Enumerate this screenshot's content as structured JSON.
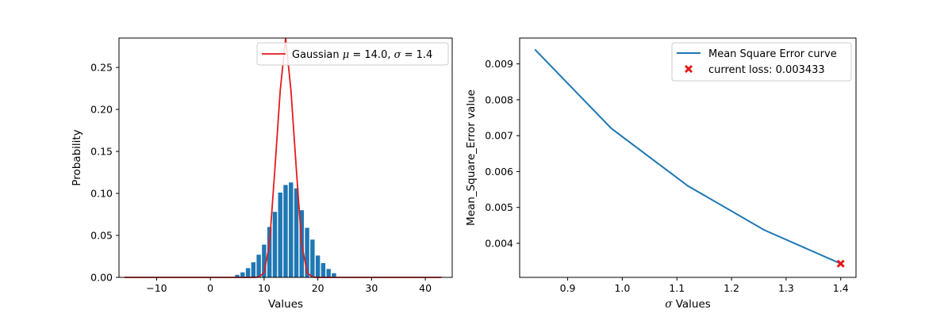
{
  "chart_data": [
    {
      "type": "bar",
      "xlabel": "Values",
      "ylabel": "Probability",
      "xlim": [
        -17,
        45
      ],
      "ylim": [
        0,
        0.285
      ],
      "xticks": [
        -10,
        0,
        10,
        20,
        30,
        40
      ],
      "xtick_labels": [
        "−10",
        "0",
        "10",
        "20",
        "30",
        "40"
      ],
      "yticks": [
        0.0,
        0.05,
        0.1,
        0.15,
        0.2,
        0.25
      ],
      "ytick_labels": [
        "0.00",
        "0.05",
        "0.10",
        "0.15",
        "0.20",
        "0.25"
      ],
      "grid": false,
      "legend_position": "top-right",
      "series": [
        {
          "kind": "bar",
          "color": "#1f77b4",
          "x": [
            5,
            6,
            7,
            8,
            9,
            10,
            11,
            12,
            13,
            14,
            15,
            16,
            17,
            18,
            19,
            20,
            21,
            22,
            23
          ],
          "values": [
            0.003,
            0.006,
            0.011,
            0.018,
            0.027,
            0.039,
            0.06,
            0.078,
            0.101,
            0.11,
            0.113,
            0.106,
            0.08,
            0.059,
            0.045,
            0.026,
            0.017,
            0.01,
            0.005
          ]
        },
        {
          "kind": "line",
          "name_prefix": "Gaussian ",
          "name_mu_symbol": "μ",
          "name_mu_value": " = 14.0, ",
          "name_sigma_symbol": "σ",
          "name_sigma_value": " = 1.4",
          "color": "#e41a1c",
          "x": [
            -16,
            -15,
            -14,
            -13,
            -12,
            -11,
            -10,
            -9,
            -8,
            -7,
            -6,
            -5,
            -4,
            -3,
            -2,
            -1,
            0,
            1,
            2,
            3,
            4,
            5,
            6,
            7,
            8,
            9,
            10,
            11,
            12,
            13,
            14,
            15,
            16,
            17,
            18,
            19,
            20,
            21,
            22,
            23,
            24,
            25,
            26,
            27,
            28,
            29,
            30,
            31,
            32,
            33,
            34,
            35,
            36,
            37,
            38,
            39,
            40,
            41,
            42,
            43
          ],
          "values": [
            0,
            0,
            0,
            0,
            0,
            0,
            0,
            0,
            0,
            0,
            0,
            0,
            0,
            0,
            0,
            0,
            0,
            0,
            0,
            0,
            0,
            0,
            0,
            0,
            0,
            0.0004,
            0.0055,
            0.0395,
            0.1284,
            0.2225,
            0.285,
            0.2225,
            0.1284,
            0.0395,
            0.0055,
            0.0004,
            0,
            0,
            0,
            0,
            0,
            0,
            0,
            0,
            0,
            0,
            0,
            0,
            0,
            0,
            0,
            0,
            0,
            0,
            0,
            0,
            0,
            0,
            0,
            0
          ]
        }
      ]
    },
    {
      "type": "line",
      "xlabel_symbol": "σ",
      "xlabel_rest": " Values",
      "ylabel": "Mean_Square_Error value",
      "xlim": [
        0.812,
        1.428
      ],
      "ylim": [
        0.00305,
        0.00972
      ],
      "xticks": [
        0.9,
        1.0,
        1.1,
        1.2,
        1.3,
        1.4
      ],
      "xtick_labels": [
        "0.9",
        "1.0",
        "1.1",
        "1.2",
        "1.3",
        "1.4"
      ],
      "yticks": [
        0.004,
        0.005,
        0.006,
        0.007,
        0.008,
        0.009
      ],
      "ytick_labels": [
        "0.004",
        "0.005",
        "0.006",
        "0.007",
        "0.008",
        "0.009"
      ],
      "grid": false,
      "legend_position": "top-right",
      "series": [
        {
          "kind": "line",
          "name": "Mean Square Error curve",
          "color": "#1f77b4",
          "x": [
            0.84,
            0.98,
            1.12,
            1.26,
            1.4
          ],
          "values": [
            0.0094,
            0.0072,
            0.0056,
            0.00437,
            0.003433
          ]
        },
        {
          "kind": "scatter",
          "name": "current loss: 0.003433",
          "color": "#e41a1c",
          "marker": "x",
          "x": [
            1.4
          ],
          "values": [
            0.003433
          ]
        }
      ]
    }
  ]
}
